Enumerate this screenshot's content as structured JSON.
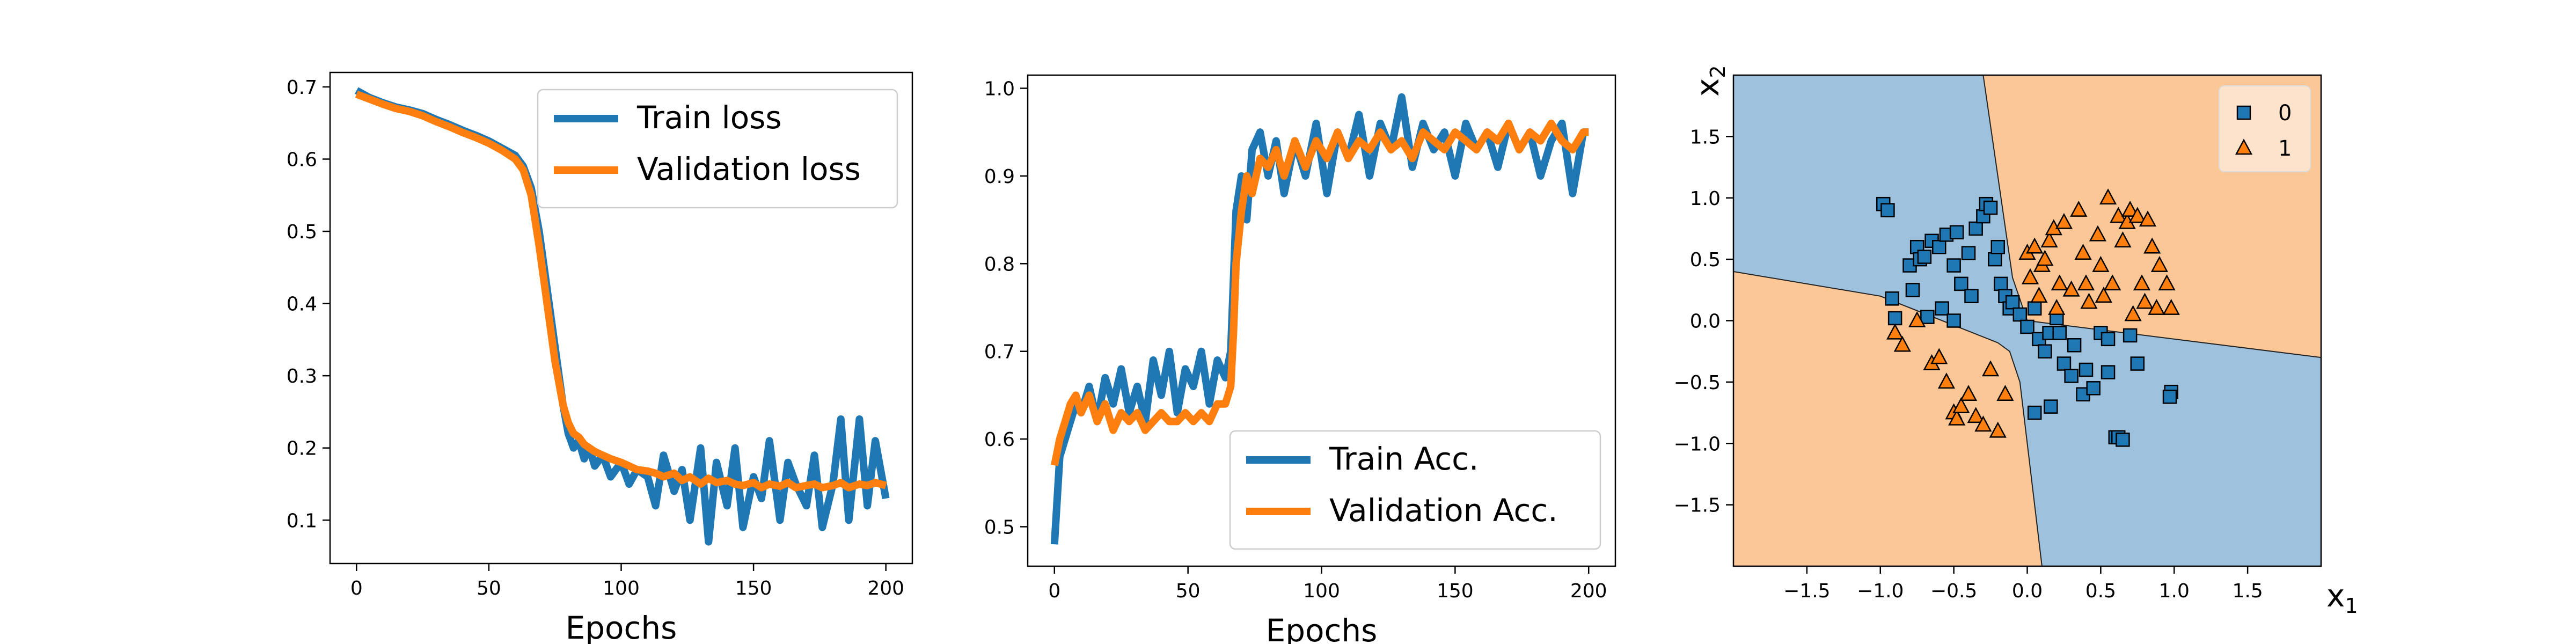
{
  "chart_data": [
    {
      "type": "line",
      "xlabel": "Epochs",
      "ylabel": "",
      "xlim": [
        -10,
        210
      ],
      "ylim": [
        0.04,
        0.72
      ],
      "xticks": [
        "0",
        "50",
        "100",
        "150",
        "200"
      ],
      "yticks": [
        "0.1",
        "0.2",
        "0.3",
        "0.4",
        "0.5",
        "0.6",
        "0.7"
      ],
      "legend": {
        "placement": "upper-right",
        "entries": [
          "Train loss",
          "Validation loss"
        ]
      },
      "series": [
        {
          "name": "Train loss",
          "color": "#1f77b4",
          "x": [
            0,
            5,
            10,
            15,
            20,
            25,
            30,
            35,
            40,
            45,
            50,
            55,
            60,
            63,
            66,
            69,
            72,
            75,
            78,
            80,
            82,
            84,
            86,
            88,
            90,
            93,
            96,
            100,
            103,
            106,
            110,
            113,
            116,
            120,
            123,
            126,
            130,
            133,
            136,
            140,
            143,
            146,
            150,
            153,
            156,
            160,
            163,
            166,
            170,
            173,
            176,
            180,
            183,
            186,
            190,
            193,
            196,
            200
          ],
          "values": [
            0.695,
            0.685,
            0.678,
            0.672,
            0.668,
            0.663,
            0.655,
            0.648,
            0.64,
            0.633,
            0.625,
            0.615,
            0.605,
            0.59,
            0.56,
            0.5,
            0.42,
            0.34,
            0.26,
            0.22,
            0.2,
            0.21,
            0.185,
            0.2,
            0.175,
            0.19,
            0.16,
            0.18,
            0.15,
            0.17,
            0.16,
            0.12,
            0.19,
            0.14,
            0.17,
            0.1,
            0.2,
            0.07,
            0.18,
            0.12,
            0.2,
            0.09,
            0.16,
            0.13,
            0.21,
            0.1,
            0.18,
            0.15,
            0.12,
            0.19,
            0.09,
            0.15,
            0.24,
            0.1,
            0.24,
            0.12,
            0.21,
            0.13
          ]
        },
        {
          "name": "Validation loss",
          "color": "#ff7f0e",
          "x": [
            0,
            5,
            10,
            15,
            20,
            25,
            30,
            35,
            40,
            45,
            50,
            55,
            60,
            63,
            66,
            69,
            72,
            75,
            78,
            80,
            82,
            84,
            86,
            88,
            90,
            93,
            96,
            100,
            103,
            106,
            110,
            113,
            116,
            120,
            123,
            126,
            130,
            133,
            136,
            140,
            143,
            146,
            150,
            153,
            156,
            160,
            163,
            166,
            170,
            173,
            176,
            180,
            183,
            186,
            190,
            193,
            196,
            200
          ],
          "values": [
            0.69,
            0.683,
            0.676,
            0.67,
            0.666,
            0.66,
            0.652,
            0.645,
            0.637,
            0.63,
            0.622,
            0.612,
            0.6,
            0.585,
            0.55,
            0.48,
            0.4,
            0.32,
            0.26,
            0.235,
            0.22,
            0.215,
            0.205,
            0.2,
            0.195,
            0.19,
            0.185,
            0.18,
            0.175,
            0.17,
            0.168,
            0.165,
            0.16,
            0.165,
            0.155,
            0.16,
            0.15,
            0.158,
            0.152,
            0.155,
            0.15,
            0.148,
            0.152,
            0.145,
            0.15,
            0.147,
            0.152,
            0.145,
            0.148,
            0.15,
            0.145,
            0.148,
            0.152,
            0.145,
            0.15,
            0.148,
            0.152,
            0.148
          ]
        }
      ]
    },
    {
      "type": "line",
      "xlabel": "Epochs",
      "ylabel": "",
      "xlim": [
        -10,
        210
      ],
      "ylim": [
        0.455,
        1.015
      ],
      "xticks": [
        "0",
        "50",
        "100",
        "150",
        "200"
      ],
      "yticks": [
        "0.5",
        "0.6",
        "0.7",
        "0.8",
        "0.9",
        "1.0"
      ],
      "legend": {
        "placement": "lower-right",
        "entries": [
          "Train Acc.",
          "Validation Acc."
        ]
      },
      "series": [
        {
          "name": "Train Acc.",
          "color": "#1f77b4",
          "x": [
            0,
            2,
            4,
            6,
            8,
            10,
            13,
            16,
            19,
            22,
            25,
            28,
            31,
            34,
            37,
            40,
            43,
            46,
            49,
            52,
            55,
            58,
            61,
            64,
            66,
            67,
            68,
            70,
            72,
            74,
            77,
            80,
            83,
            86,
            90,
            94,
            98,
            102,
            106,
            110,
            114,
            118,
            122,
            126,
            130,
            134,
            138,
            142,
            146,
            150,
            154,
            158,
            162,
            166,
            170,
            174,
            178,
            182,
            186,
            190,
            194,
            198,
            200
          ],
          "values": [
            0.48,
            0.58,
            0.6,
            0.62,
            0.64,
            0.63,
            0.66,
            0.62,
            0.67,
            0.64,
            0.68,
            0.63,
            0.66,
            0.62,
            0.69,
            0.65,
            0.7,
            0.63,
            0.68,
            0.66,
            0.7,
            0.64,
            0.69,
            0.67,
            0.7,
            0.78,
            0.86,
            0.9,
            0.85,
            0.93,
            0.95,
            0.9,
            0.94,
            0.88,
            0.94,
            0.9,
            0.96,
            0.88,
            0.95,
            0.92,
            0.97,
            0.9,
            0.96,
            0.93,
            0.99,
            0.91,
            0.96,
            0.93,
            0.95,
            0.9,
            0.96,
            0.93,
            0.95,
            0.91,
            0.96,
            0.93,
            0.95,
            0.9,
            0.94,
            0.96,
            0.88,
            0.95,
            0.95
          ]
        },
        {
          "name": "Validation Acc.",
          "color": "#ff7f0e",
          "x": [
            0,
            2,
            4,
            6,
            8,
            10,
            13,
            16,
            19,
            22,
            25,
            28,
            31,
            34,
            37,
            40,
            43,
            46,
            49,
            52,
            55,
            58,
            61,
            64,
            66,
            67,
            68,
            70,
            72,
            74,
            77,
            80,
            83,
            86,
            90,
            94,
            98,
            102,
            106,
            110,
            114,
            118,
            122,
            126,
            130,
            134,
            138,
            142,
            146,
            150,
            154,
            158,
            162,
            166,
            170,
            174,
            178,
            182,
            186,
            190,
            194,
            198,
            200
          ],
          "values": [
            0.57,
            0.6,
            0.62,
            0.64,
            0.65,
            0.63,
            0.65,
            0.62,
            0.64,
            0.61,
            0.63,
            0.62,
            0.63,
            0.61,
            0.62,
            0.63,
            0.62,
            0.62,
            0.63,
            0.62,
            0.63,
            0.62,
            0.64,
            0.64,
            0.66,
            0.72,
            0.8,
            0.86,
            0.9,
            0.88,
            0.92,
            0.91,
            0.93,
            0.9,
            0.94,
            0.91,
            0.94,
            0.92,
            0.95,
            0.92,
            0.94,
            0.93,
            0.95,
            0.93,
            0.94,
            0.92,
            0.95,
            0.94,
            0.93,
            0.95,
            0.94,
            0.93,
            0.95,
            0.94,
            0.96,
            0.93,
            0.95,
            0.94,
            0.96,
            0.94,
            0.93,
            0.95,
            0.95
          ]
        }
      ]
    },
    {
      "type": "scatter",
      "xlabel": "x1",
      "ylabel": "x2",
      "xlim": [
        -2.0,
        2.0
      ],
      "ylim": [
        -2.0,
        2.0
      ],
      "xticks": [
        "−1.5",
        "−1.0",
        "−0.5",
        "0.0",
        "0.5",
        "1.0",
        "1.5"
      ],
      "yticks": [
        "−1.5",
        "−1.0",
        "−0.5",
        "0.0",
        "0.5",
        "1.0",
        "1.5"
      ],
      "legend": {
        "placement": "upper-right",
        "entries": [
          "0",
          "1"
        ]
      },
      "regions": {
        "class0_color": "#9ec2de",
        "class1_color": "#fbc797"
      },
      "series": [
        {
          "name": "0",
          "marker": "square",
          "color": "#1f77b4",
          "points": [
            [
              -0.98,
              0.95
            ],
            [
              -0.95,
              0.9
            ],
            [
              -0.8,
              0.45
            ],
            [
              -0.78,
              0.25
            ],
            [
              -0.75,
              0.6
            ],
            [
              -0.73,
              0.5
            ],
            [
              -0.7,
              0.52
            ],
            [
              -0.65,
              0.65
            ],
            [
              -0.6,
              0.6
            ],
            [
              -0.58,
              0.1
            ],
            [
              -0.55,
              0.7
            ],
            [
              -0.5,
              0.45
            ],
            [
              -0.48,
              0.72
            ],
            [
              -0.45,
              0.3
            ],
            [
              -0.4,
              0.55
            ],
            [
              -0.38,
              0.2
            ],
            [
              -0.35,
              0.75
            ],
            [
              -0.3,
              0.85
            ],
            [
              -0.28,
              0.95
            ],
            [
              -0.25,
              0.92
            ],
            [
              -0.22,
              0.5
            ],
            [
              -0.2,
              0.6
            ],
            [
              -0.18,
              0.3
            ],
            [
              -0.15,
              0.2
            ],
            [
              -0.12,
              0.1
            ],
            [
              -0.1,
              0.15
            ],
            [
              -0.05,
              0.05
            ],
            [
              0.0,
              -0.05
            ],
            [
              0.05,
              0.1
            ],
            [
              0.08,
              -0.15
            ],
            [
              0.12,
              -0.25
            ],
            [
              0.15,
              -0.1
            ],
            [
              0.2,
              0.02
            ],
            [
              0.22,
              -0.1
            ],
            [
              0.25,
              -0.35
            ],
            [
              0.3,
              -0.45
            ],
            [
              0.32,
              -0.2
            ],
            [
              0.38,
              -0.6
            ],
            [
              0.45,
              -0.55
            ],
            [
              0.5,
              -0.1
            ],
            [
              0.55,
              -0.15
            ],
            [
              0.55,
              -0.42
            ],
            [
              0.6,
              -0.95
            ],
            [
              0.62,
              -0.95
            ],
            [
              0.65,
              -0.97
            ],
            [
              0.7,
              -0.12
            ],
            [
              0.75,
              -0.35
            ],
            [
              0.98,
              -0.58
            ],
            [
              0.97,
              -0.62
            ],
            [
              0.05,
              -0.75
            ],
            [
              -0.92,
              0.18
            ],
            [
              -0.9,
              0.02
            ],
            [
              -0.68,
              0.03
            ],
            [
              -0.5,
              0.0
            ],
            [
              0.16,
              -0.7
            ],
            [
              0.4,
              -0.4
            ]
          ]
        },
        {
          "name": "1",
          "marker": "triangle",
          "color": "#ff7f0e",
          "points": [
            [
              -0.9,
              -0.1
            ],
            [
              -0.85,
              -0.2
            ],
            [
              -0.75,
              0.0
            ],
            [
              -0.65,
              -0.35
            ],
            [
              -0.6,
              -0.3
            ],
            [
              -0.55,
              -0.5
            ],
            [
              -0.5,
              -0.75
            ],
            [
              -0.48,
              -0.8
            ],
            [
              -0.45,
              -0.7
            ],
            [
              -0.4,
              -0.6
            ],
            [
              -0.35,
              -0.78
            ],
            [
              -0.3,
              -0.85
            ],
            [
              -0.25,
              -0.4
            ],
            [
              -0.2,
              -0.9
            ],
            [
              -0.15,
              -0.6
            ],
            [
              0.0,
              0.55
            ],
            [
              0.02,
              0.35
            ],
            [
              0.05,
              0.6
            ],
            [
              0.08,
              0.2
            ],
            [
              0.1,
              0.45
            ],
            [
              0.12,
              0.5
            ],
            [
              0.15,
              0.65
            ],
            [
              0.18,
              0.75
            ],
            [
              0.2,
              0.1
            ],
            [
              0.22,
              0.3
            ],
            [
              0.25,
              0.8
            ],
            [
              0.3,
              0.25
            ],
            [
              0.35,
              0.9
            ],
            [
              0.38,
              0.55
            ],
            [
              0.42,
              0.15
            ],
            [
              0.48,
              0.7
            ],
            [
              0.5,
              0.45
            ],
            [
              0.52,
              0.2
            ],
            [
              0.55,
              1.0
            ],
            [
              0.58,
              0.3
            ],
            [
              0.62,
              0.85
            ],
            [
              0.65,
              0.65
            ],
            [
              0.68,
              0.8
            ],
            [
              0.7,
              0.9
            ],
            [
              0.75,
              0.85
            ],
            [
              0.78,
              0.3
            ],
            [
              0.82,
              0.82
            ],
            [
              0.85,
              0.6
            ],
            [
              0.88,
              0.1
            ],
            [
              0.9,
              0.45
            ],
            [
              0.95,
              0.3
            ],
            [
              0.98,
              0.1
            ],
            [
              0.72,
              0.05
            ],
            [
              0.8,
              0.15
            ],
            [
              0.4,
              0.3
            ]
          ]
        }
      ]
    }
  ]
}
